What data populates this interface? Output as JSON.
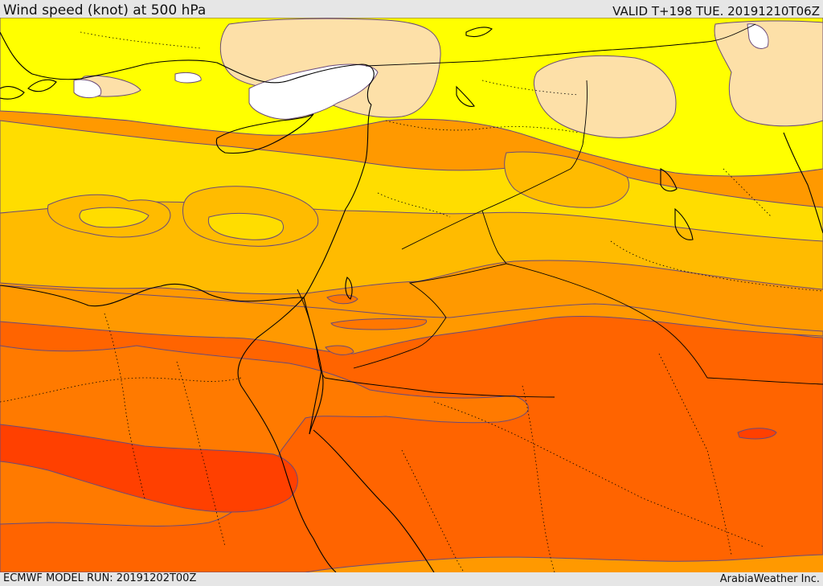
{
  "header": {
    "title": "Wind speed (knot) at 500 hPa",
    "valid": "VALID T+198 TUE. 20191210T06Z"
  },
  "footer": {
    "model_run": "ECMWF MODEL RUN: 20191202T00Z",
    "brand": "ArabiaWeather Inc."
  },
  "map": {
    "region": "Eastern Mediterranean / Middle East",
    "variable": "wind speed at 500 hPa",
    "colors": {
      "calm_white": "#ffffff",
      "light_tan": "#fde0a8",
      "yellow": "#ffff00",
      "gold": "#ffdd00",
      "amber": "#ffbb00",
      "orange_light": "#ff9900",
      "orange": "#ff7700",
      "orange_dark": "#ff6400",
      "red_orange": "#ff4000",
      "coastline": "#000000",
      "contour": "#6a4a7a"
    }
  }
}
